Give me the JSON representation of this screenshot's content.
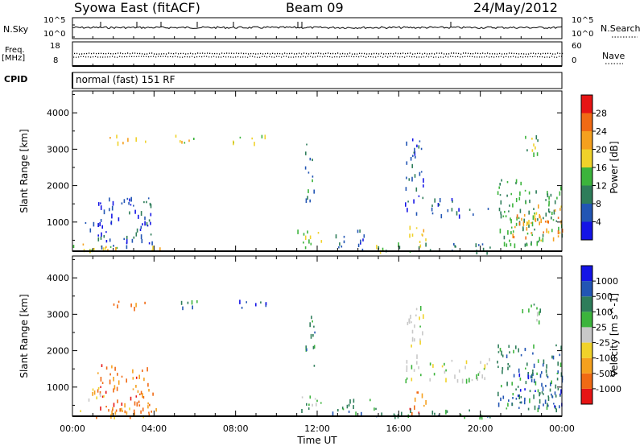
{
  "header": {
    "title": "Syowa East (fitACF)",
    "beam": "Beam 09",
    "date": "24/May/2012"
  },
  "top_panels": {
    "nsky_label": "N.Sky",
    "nsky_top_tick": "10^5",
    "nsky_bottom_tick": "10^0",
    "nsearch_label": "N.Search",
    "nsearch_top_tick": "10^5",
    "nsearch_bottom_tick": "10^0",
    "freq_label": "Freq.",
    "freq_unit": "[MHz]",
    "freq_top_tick": "18",
    "freq_bottom_tick": "8",
    "nave_label": "Nave",
    "nave_top_tick": "60",
    "nave_bottom_tick": "0",
    "cpid_label": "CPID",
    "cpid_text": "normal (fast) 151 RF"
  },
  "colors": {
    "power": [
      "#1414e6",
      "#2255b4",
      "#2e7d5a",
      "#3cb43c",
      "#f0d22a",
      "#f5a01e",
      "#f06a14",
      "#e61414"
    ],
    "velocity": [
      "#e61414",
      "#f06a14",
      "#f5a01e",
      "#f0d22a",
      "#c8c8c8",
      "#3cb43c",
      "#2e7d5a",
      "#2255b4",
      "#1414e6"
    ]
  },
  "chart_data": [
    {
      "type": "heatmap",
      "name": "power",
      "ylabel": "Slant Range [km]",
      "y_ticks": [
        "1000",
        "2000",
        "3000",
        "4000"
      ],
      "y_tick_values": [
        1000,
        2000,
        3000,
        4000
      ],
      "ylim": [
        200,
        4600
      ],
      "colorbar_label": "Power [dB]",
      "colorbar_ticks": [
        "4",
        "8",
        "12",
        "16",
        "20",
        "24",
        "28"
      ],
      "colorbar_values": [
        4,
        8,
        12,
        16,
        20,
        24,
        28
      ],
      "colorbar_range": [
        0,
        32
      ],
      "xlim": [
        0,
        24
      ],
      "clusters": [
        {
          "t": [
            0.0,
            1.7
          ],
          "r": [
            200,
            420
          ],
          "v": 18
        },
        {
          "t": [
            1.0,
            4.3
          ],
          "r": [
            200,
            420
          ],
          "v": 18
        },
        {
          "t": [
            1.2,
            4.0
          ],
          "r": [
            350,
            1700
          ],
          "v": 6
        },
        {
          "t": [
            0.6,
            1.6
          ],
          "r": [
            600,
            1100
          ],
          "v": 6
        },
        {
          "t": [
            1.6,
            3.6
          ],
          "r": [
            3200,
            3400
          ],
          "v": 18
        },
        {
          "t": [
            5.0,
            6.2
          ],
          "r": [
            3200,
            3400
          ],
          "v": 18
        },
        {
          "t": [
            7.5,
            9.5
          ],
          "r": [
            3200,
            3400
          ],
          "v": 18
        },
        {
          "t": [
            11.4,
            11.9
          ],
          "r": [
            1600,
            3200
          ],
          "v": 9
        },
        {
          "t": [
            11.0,
            12.3
          ],
          "r": [
            300,
            800
          ],
          "v": 16
        },
        {
          "t": [
            12.6,
            13.3
          ],
          "r": [
            300,
            700
          ],
          "v": 8
        },
        {
          "t": [
            13.8,
            14.6
          ],
          "r": [
            200,
            800
          ],
          "v": 6
        },
        {
          "t": [
            14.5,
            17.0
          ],
          "r": [
            200,
            450
          ],
          "v": 14
        },
        {
          "t": [
            16.5,
            17.5
          ],
          "r": [
            300,
            900
          ],
          "v": 20
        },
        {
          "t": [
            16.3,
            17.2
          ],
          "r": [
            1200,
            3300
          ],
          "v": 6
        },
        {
          "t": [
            17.3,
            20.5
          ],
          "r": [
            200,
            450
          ],
          "v": 8
        },
        {
          "t": [
            17.5,
            18.7
          ],
          "r": [
            1400,
            1800
          ],
          "v": 6
        },
        {
          "t": [
            17.5,
            20.6
          ],
          "r": [
            1200,
            1400
          ],
          "v": 6
        },
        {
          "t": [
            20.8,
            24.0
          ],
          "r": [
            400,
            2200
          ],
          "v": 12
        },
        {
          "t": [
            21.5,
            24.0
          ],
          "r": [
            500,
            1500
          ],
          "v": 22
        },
        {
          "t": [
            22.0,
            23.0
          ],
          "r": [
            2800,
            3400
          ],
          "v": 14
        }
      ]
    },
    {
      "type": "heatmap",
      "name": "velocity",
      "ylabel": "Slant Range [km]",
      "xlabel": "Time UT",
      "x_ticks": [
        "00:00",
        "04:00",
        "08:00",
        "12:00",
        "16:00",
        "20:00",
        "00:00"
      ],
      "x_tick_values": [
        0,
        4,
        8,
        12,
        16,
        20,
        24
      ],
      "y_ticks": [
        "1000",
        "2000",
        "3000",
        "4000"
      ],
      "y_tick_values": [
        1000,
        2000,
        3000,
        4000
      ],
      "ylim": [
        200,
        4600
      ],
      "colorbar_label": "Velocity [m s^-1]",
      "colorbar_ticks": [
        "-1000",
        "-500",
        "-100",
        "-25",
        "25",
        "100",
        "500",
        "1000"
      ],
      "xlim": [
        0,
        24
      ],
      "clusters": [
        {
          "t": [
            0.0,
            4.3
          ],
          "r": [
            200,
            450
          ],
          "v": 2
        },
        {
          "t": [
            1.2,
            4.0
          ],
          "r": [
            350,
            1700
          ],
          "v": 1
        },
        {
          "t": [
            0.6,
            1.6
          ],
          "r": [
            600,
            1100
          ],
          "v": 3
        },
        {
          "t": [
            1.6,
            3.6
          ],
          "r": [
            3200,
            3400
          ],
          "v": 1
        },
        {
          "t": [
            5.0,
            6.2
          ],
          "r": [
            3200,
            3400
          ],
          "v": 6
        },
        {
          "t": [
            7.5,
            9.5
          ],
          "r": [
            3200,
            3400
          ],
          "v": 7
        },
        {
          "t": [
            11.4,
            11.9
          ],
          "r": [
            1600,
            3200
          ],
          "v": 6
        },
        {
          "t": [
            11.0,
            12.3
          ],
          "r": [
            300,
            800
          ],
          "v": 5
        },
        {
          "t": [
            12.6,
            14.6
          ],
          "r": [
            300,
            700
          ],
          "v": 6
        },
        {
          "t": [
            14.5,
            17.0
          ],
          "r": [
            200,
            450
          ],
          "v": 6
        },
        {
          "t": [
            16.5,
            17.5
          ],
          "r": [
            300,
            900
          ],
          "v": 1
        },
        {
          "t": [
            16.3,
            17.2
          ],
          "r": [
            1200,
            3300
          ],
          "v": 4
        },
        {
          "t": [
            17.3,
            20.5
          ],
          "r": [
            200,
            450
          ],
          "v": 6
        },
        {
          "t": [
            17.5,
            20.6
          ],
          "r": [
            1200,
            1800
          ],
          "v": 4
        },
        {
          "t": [
            20.8,
            24.0
          ],
          "r": [
            400,
            2200
          ],
          "v": 6
        },
        {
          "t": [
            21.5,
            24.0
          ],
          "r": [
            500,
            1500
          ],
          "v": 7
        },
        {
          "t": [
            22.0,
            23.0
          ],
          "r": [
            2800,
            3400
          ],
          "v": 5
        }
      ]
    }
  ]
}
